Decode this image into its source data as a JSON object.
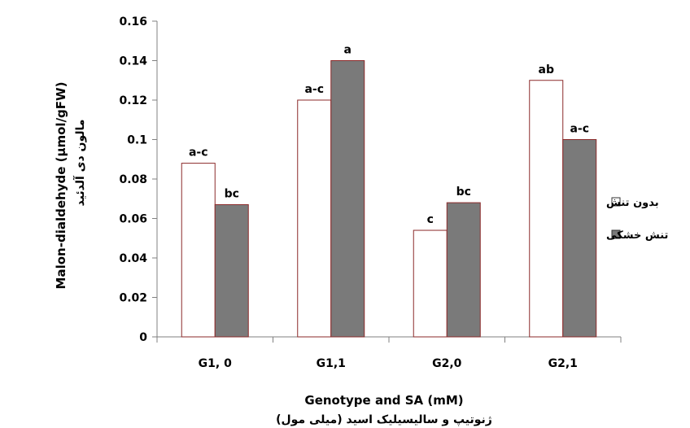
{
  "colors": {
    "control_fill": "#ffffff",
    "drought_fill": "#7a7a7a",
    "bar_stroke": "#8b2a2a",
    "axis": "#808080"
  },
  "chart_data": {
    "type": "bar",
    "categories": [
      "G1, 0",
      "G1,1",
      "G2,0",
      "G2,1"
    ],
    "series": [
      {
        "name": "بدون تنش",
        "values": [
          0.088,
          0.12,
          0.054,
          0.13
        ],
        "labels": [
          "a-c",
          "a-c",
          "c",
          "ab"
        ]
      },
      {
        "name": "تنش خشکی",
        "values": [
          0.067,
          0.14,
          0.068,
          0.1
        ],
        "labels": [
          "bc",
          "a",
          "bc",
          "a-c"
        ]
      }
    ],
    "xlabel": "Genotype and SA (mM)",
    "xlabel_fa": "ژنوتیپ و سالیسیلیک اسید (میلی مول)",
    "ylabel": "Malon-dialdehyde (µmol/gFW)",
    "ylabel_fa": "مالون دی آلدئید",
    "ylim": [
      0,
      0.16
    ],
    "yticks": [
      "0",
      "0.02",
      "0.04",
      "0.06",
      "0.08",
      "0.1",
      "0.12",
      "0.14",
      "0.16"
    ],
    "grid": false,
    "legend_position": "right"
  }
}
